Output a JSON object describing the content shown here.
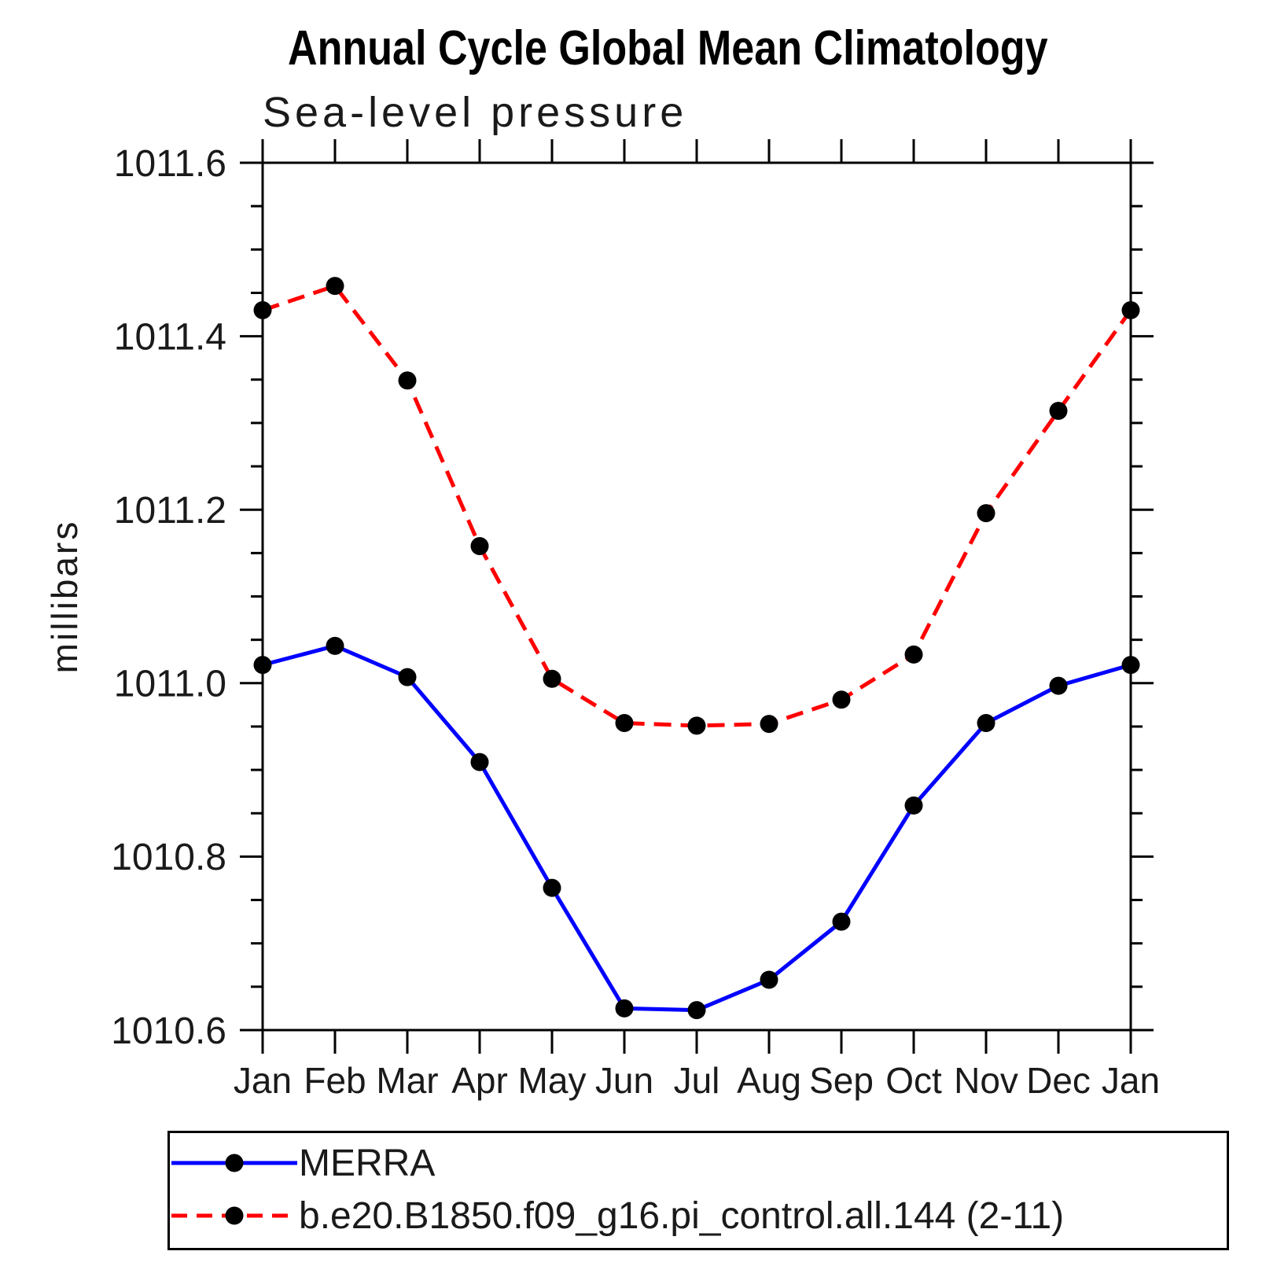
{
  "title": "Annual Cycle Global Mean Climatology",
  "subtitle": "Sea-level pressure",
  "ylabel": "millibars",
  "colors": {
    "obs_line": "#0000ff",
    "model_line": "#ff0000",
    "marker": "#000000",
    "axis": "#000000",
    "background": "#ffffff"
  },
  "legend": {
    "items": [
      {
        "label": "MERRA",
        "color": "#0000ff",
        "style": "solid",
        "marker": "circle"
      },
      {
        "label": "b.e20.B1850.f09_g16.pi_control.all.144 (2-11)",
        "color": "#ff0000",
        "style": "dashed",
        "marker": "circle"
      }
    ]
  },
  "chart_data": {
    "type": "line",
    "title": "Annual Cycle Global Mean Climatology",
    "subtitle": "Sea-level pressure",
    "xlabel": "",
    "ylabel": "millibars",
    "categories": [
      "Jan",
      "Feb",
      "Mar",
      "Apr",
      "May",
      "Jun",
      "Jul",
      "Aug",
      "Sep",
      "Oct",
      "Nov",
      "Dec",
      "Jan"
    ],
    "series": [
      {
        "name": "MERRA",
        "color": "#0000ff",
        "line": "solid",
        "marker": "circle",
        "values": [
          1011.021,
          1011.043,
          1011.007,
          1010.909,
          1010.764,
          1010.625,
          1010.623,
          1010.658,
          1010.725,
          1010.859,
          1010.954,
          1010.997,
          1011.021
        ]
      },
      {
        "name": "b.e20.B1850.f09_g16.pi_control.all.144 (2-11)",
        "color": "#ff0000",
        "line": "dashed",
        "marker": "circle",
        "values": [
          1011.43,
          1011.458,
          1011.349,
          1011.158,
          1011.005,
          1010.954,
          1010.951,
          1010.953,
          1010.981,
          1011.033,
          1011.196,
          1011.314,
          1011.43
        ]
      }
    ],
    "ylim": [
      1010.6,
      1011.6
    ],
    "yticks": [
      1010.6,
      1010.8,
      1011.0,
      1011.2,
      1011.4,
      1011.6
    ],
    "ytick_minor_step": 0.05,
    "ytick_label_decimals": 1,
    "grid": false,
    "frame": "box-with-outward-ticks",
    "legend_position": "bottom-left-box"
  }
}
